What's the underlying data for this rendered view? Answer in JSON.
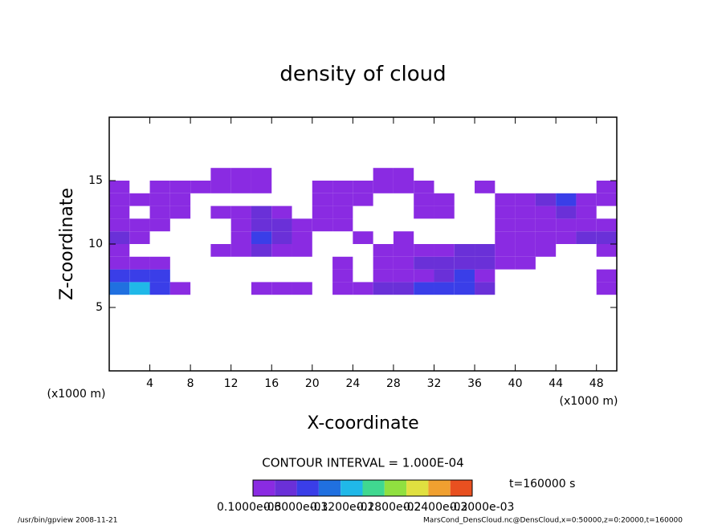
{
  "chart_data": {
    "type": "contour",
    "title": "density of cloud",
    "x_label": "X-coordinate",
    "y_label": "Z-coordinate",
    "x_unit": "(x1000 m)",
    "y_unit": "(x1000 m)",
    "xlim": [
      0,
      50
    ],
    "xticks": [
      4,
      8,
      12,
      16,
      20,
      24,
      28,
      32,
      36,
      40,
      44,
      48
    ],
    "ylim": [
      0,
      20
    ],
    "yticks": [
      5,
      10,
      15
    ],
    "contour_interval": "CONTOUR INTERVAL = 1.000E-04",
    "time_label": "t=160000 s",
    "colorbar_labels": [
      "0.1000e-03",
      "0.6000e-03",
      "0.1200e-02",
      "0.1800e-02",
      "0.2400e-02",
      "0.3000e-03"
    ],
    "level_colors": [
      "#8a2be2",
      "#6a30d8",
      "#3a3ee8",
      "#2070e0",
      "#20b8e8",
      "#40d890",
      "#90e040",
      "#e0e040",
      "#f0a030",
      "#e85020"
    ],
    "field": {
      "x": [
        1,
        3,
        5,
        7,
        9,
        11,
        13,
        15,
        17,
        19,
        21,
        23,
        25,
        27,
        29,
        31,
        33,
        35,
        37,
        39,
        41,
        43,
        45,
        47,
        49
      ],
      "z": [
        6.5,
        7.5,
        8.5,
        9.5,
        10.5,
        11.5,
        12.5,
        13.5,
        14.5,
        15.5
      ],
      "values": [
        [
          4,
          5,
          3,
          1,
          0,
          0,
          0,
          1,
          1,
          1,
          0,
          1,
          1,
          2,
          2,
          3,
          3,
          3,
          2,
          0,
          0,
          0,
          0,
          0,
          1
        ],
        [
          3,
          3,
          3,
          0,
          0,
          0,
          0,
          0,
          0,
          0,
          0,
          1,
          0,
          1,
          1,
          1,
          2,
          3,
          1,
          0,
          0,
          0,
          0,
          0,
          1
        ],
        [
          1,
          1,
          1,
          0,
          0,
          0,
          0,
          0,
          0,
          0,
          0,
          1,
          0,
          1,
          1,
          2,
          2,
          2,
          2,
          1,
          1,
          0,
          0,
          0,
          0
        ],
        [
          1,
          0,
          0,
          0,
          0,
          1,
          1,
          2,
          1,
          1,
          0,
          0,
          0,
          1,
          1,
          1,
          1,
          2,
          2,
          1,
          1,
          1,
          0,
          0,
          1
        ],
        [
          2,
          1,
          0,
          0,
          0,
          0,
          1,
          3,
          2,
          1,
          0,
          0,
          1,
          0,
          1,
          0,
          0,
          0,
          0,
          1,
          1,
          1,
          1,
          2,
          2
        ],
        [
          1,
          1,
          1,
          0,
          0,
          0,
          1,
          2,
          2,
          1,
          1,
          1,
          0,
          0,
          0,
          0,
          0,
          0,
          0,
          1,
          1,
          1,
          1,
          1,
          1
        ],
        [
          1,
          0,
          1,
          1,
          0,
          1,
          1,
          2,
          1,
          0,
          1,
          1,
          0,
          0,
          0,
          1,
          1,
          0,
          0,
          1,
          1,
          1,
          2,
          1,
          0
        ],
        [
          1,
          1,
          1,
          1,
          0,
          0,
          0,
          0,
          0,
          0,
          1,
          1,
          1,
          0,
          0,
          1,
          1,
          0,
          0,
          1,
          1,
          2,
          3,
          1,
          1
        ],
        [
          1,
          0,
          1,
          1,
          1,
          1,
          1,
          1,
          0,
          0,
          1,
          1,
          1,
          1,
          1,
          1,
          0,
          0,
          1,
          0,
          0,
          0,
          0,
          0,
          1
        ],
        [
          0,
          0,
          0,
          0,
          0,
          1,
          1,
          1,
          0,
          0,
          0,
          0,
          0,
          1,
          1,
          0,
          0,
          0,
          0,
          0,
          0,
          0,
          0,
          0,
          0
        ]
      ]
    },
    "footer_left": "/usr/bin/gpview   2008-11-21",
    "footer_right": "MarsCond_DensCloud.nc@DensCloud,x=0:50000,z=0:20000,t=160000"
  }
}
